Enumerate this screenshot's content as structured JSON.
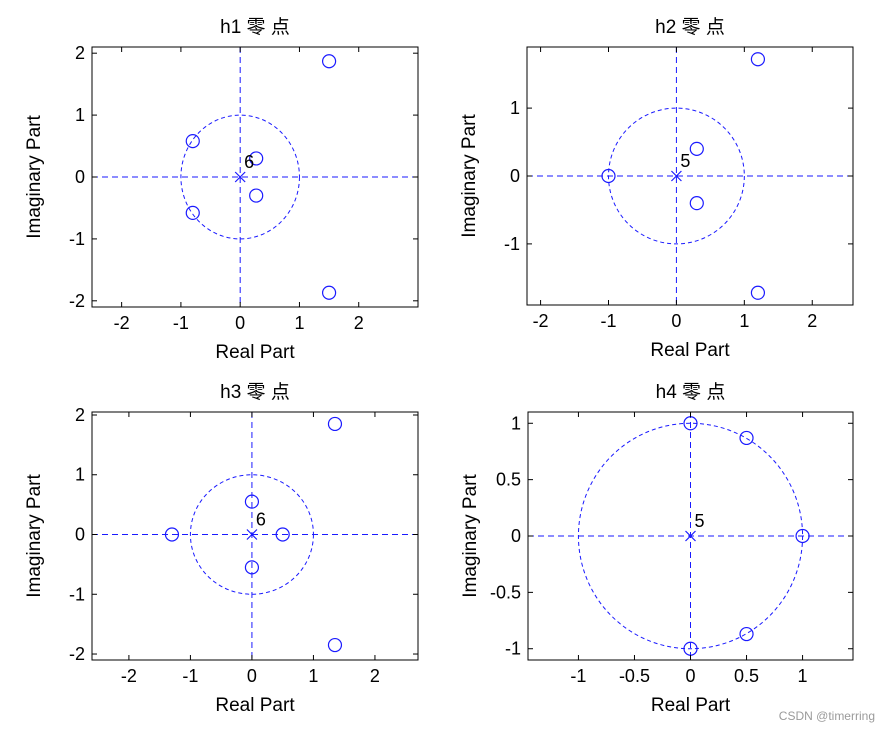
{
  "chart_data": [
    {
      "type": "scatter",
      "title": "h1 零 点",
      "xlabel": "Real Part",
      "ylabel": "Imaginary Part",
      "xlim": [
        -2.5,
        3.0
      ],
      "ylim": [
        -2.1,
        2.1
      ],
      "xticks": [
        -2,
        -1,
        0,
        1,
        2
      ],
      "yticks": [
        -2,
        -1,
        0,
        1,
        2
      ],
      "xtick_labels": [
        "-2",
        "-1",
        "0",
        "1",
        "2"
      ],
      "ytick_labels": [
        "-2",
        "-1",
        "0",
        "1",
        "2"
      ],
      "zeros": [
        [
          1.5,
          1.87
        ],
        [
          1.5,
          -1.87
        ],
        [
          -0.8,
          0.58
        ],
        [
          -0.8,
          -0.58
        ],
        [
          0.27,
          0.3
        ],
        [
          0.27,
          -0.3
        ]
      ],
      "poles": [
        [
          0,
          0
        ]
      ],
      "pole_label": "6",
      "unit_circle": true
    },
    {
      "type": "scatter",
      "title": "h2 零 点",
      "xlabel": "Real Part",
      "ylabel": "Imaginary Part",
      "xlim": [
        -2.2,
        2.6
      ],
      "ylim": [
        -1.9,
        1.9
      ],
      "xticks": [
        -2,
        -1,
        0,
        1,
        2
      ],
      "yticks": [
        -1,
        0,
        1
      ],
      "xtick_labels": [
        "-2",
        "-1",
        "0",
        "1",
        "2"
      ],
      "ytick_labels": [
        "-1",
        "0",
        "1"
      ],
      "zeros": [
        [
          1.2,
          1.72
        ],
        [
          1.2,
          -1.72
        ],
        [
          -1.0,
          0
        ],
        [
          0.3,
          0.4
        ],
        [
          0.3,
          -0.4
        ]
      ],
      "poles": [
        [
          0,
          0
        ]
      ],
      "pole_label": "5",
      "unit_circle": true
    },
    {
      "type": "scatter",
      "title": "h3 零 点",
      "xlabel": "Real Part",
      "ylabel": "Imaginary Part",
      "xlim": [
        -2.6,
        2.7
      ],
      "ylim": [
        -2.1,
        2.05
      ],
      "xticks": [
        -2,
        -1,
        0,
        1,
        2
      ],
      "yticks": [
        -2,
        -1,
        0,
        1,
        2
      ],
      "xtick_labels": [
        "-2",
        "-1",
        "0",
        "1",
        "2"
      ],
      "ytick_labels": [
        "-2",
        "-1",
        "0",
        "1",
        "2"
      ],
      "zeros": [
        [
          1.35,
          1.85
        ],
        [
          1.35,
          -1.85
        ],
        [
          -1.3,
          0
        ],
        [
          0.5,
          0
        ],
        [
          0.0,
          0.55
        ],
        [
          0.0,
          -0.55
        ]
      ],
      "poles": [
        [
          0,
          0
        ]
      ],
      "pole_label": "6",
      "unit_circle": true
    },
    {
      "type": "scatter",
      "title": "h4 零 点",
      "xlabel": "Real Part",
      "ylabel": "Imaginary Part",
      "xlim": [
        -1.45,
        1.45
      ],
      "ylim": [
        -1.1,
        1.1
      ],
      "xticks": [
        -1,
        -0.5,
        0,
        0.5,
        1
      ],
      "yticks": [
        -1,
        -0.5,
        0,
        0.5,
        1
      ],
      "xtick_labels": [
        "-1",
        "-0.5",
        "0",
        "0.5",
        "1"
      ],
      "ytick_labels": [
        "-1",
        "-0.5",
        "0",
        "0.5",
        "1"
      ],
      "zeros": [
        [
          0,
          1
        ],
        [
          0.5,
          0.87
        ],
        [
          1,
          0
        ],
        [
          0.5,
          -0.87
        ],
        [
          0,
          -1
        ]
      ],
      "poles": [
        [
          0,
          0
        ]
      ],
      "pole_label": "5",
      "unit_circle": true
    }
  ],
  "colors": {
    "marker": "#1a1aff",
    "axis": "#000000",
    "background": "#ffffff"
  },
  "watermark": "CSDN @timerring"
}
